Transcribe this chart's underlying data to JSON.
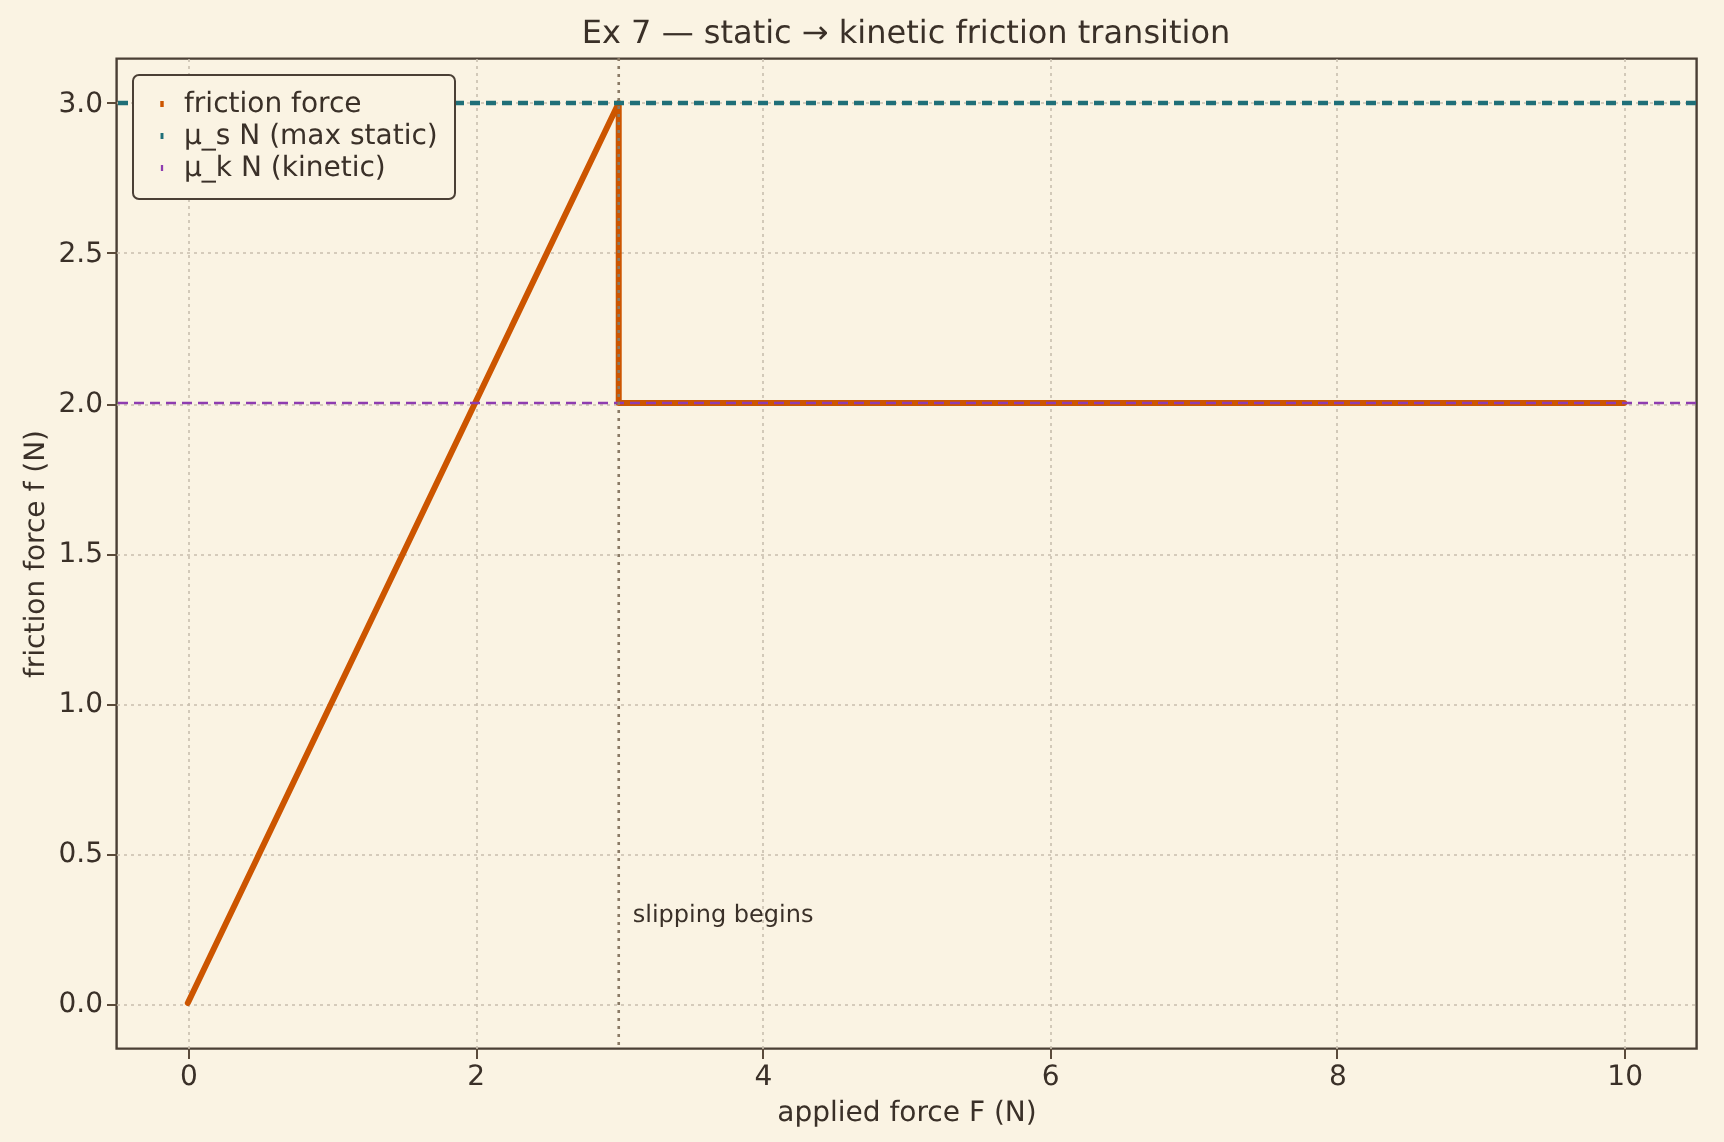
{
  "chart_data": {
    "type": "line",
    "title": "Ex 7 — static → kinetic friction transition",
    "xlabel": "applied force F (N)",
    "ylabel": "friction force f (N)",
    "series": [
      {
        "name": "friction force",
        "color": "#cc5500",
        "x": [
          0,
          3,
          3,
          10
        ],
        "values": [
          0,
          3,
          2,
          2
        ]
      }
    ],
    "xlim": [
      -0.5,
      10.5
    ],
    "xticks": [
      0,
      2,
      4,
      6,
      8,
      10
    ],
    "ylim": [
      -0.15,
      3.15
    ],
    "yticks": [
      {
        "value": 0,
        "label": "0.0"
      },
      {
        "value": 0.5,
        "label": "0.5"
      },
      {
        "value": 1,
        "label": "1.0"
      },
      {
        "value": 1.5,
        "label": "1.5"
      },
      {
        "value": 2,
        "label": "2.0"
      },
      {
        "value": 2.5,
        "label": "2.5"
      },
      {
        "value": 3,
        "label": "3.0"
      }
    ],
    "ref_lines": [
      {
        "axis": "y",
        "value": 3,
        "label": "μ_s N (max static)",
        "color": "#1f6f78",
        "line_style": "dashed"
      },
      {
        "axis": "y",
        "value": 2,
        "label": "μ_k N (kinetic)",
        "color": "#8e3cb0",
        "line_style": "dashed"
      },
      {
        "axis": "x",
        "value": 3,
        "label": "slipping begins",
        "color": "#8a7a66",
        "line_style": "dotted"
      }
    ],
    "grid": true,
    "legend": "top left",
    "line_style": "solid"
  }
}
